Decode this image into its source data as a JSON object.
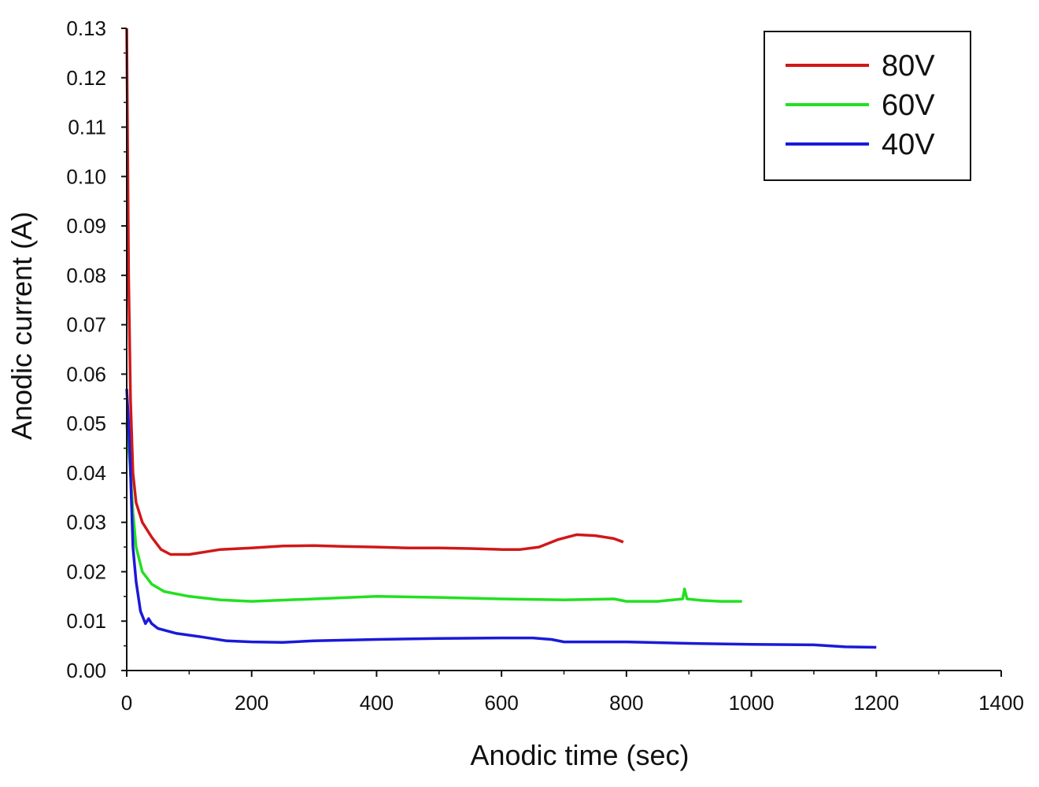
{
  "chart_data": {
    "type": "line",
    "title": "",
    "xlabel": "Anodic time (sec)",
    "ylabel": "Anodic current (A)",
    "xlim": [
      0,
      1400
    ],
    "ylim": [
      0,
      0.13
    ],
    "x_ticks": [
      "0",
      "200",
      "400",
      "600",
      "800",
      "1000",
      "1200",
      "1400"
    ],
    "y_ticks": [
      "0.00",
      "0.01",
      "0.02",
      "0.03",
      "0.04",
      "0.05",
      "0.06",
      "0.07",
      "0.08",
      "0.09",
      "0.10",
      "0.11",
      "0.12",
      "0.13"
    ],
    "grid": false,
    "legend_position": "top-right",
    "series": [
      {
        "name": "80V",
        "color": "#d01818",
        "points": [
          [
            0,
            0.13
          ],
          [
            3,
            0.08
          ],
          [
            6,
            0.055
          ],
          [
            10,
            0.04
          ],
          [
            15,
            0.034
          ],
          [
            25,
            0.03
          ],
          [
            40,
            0.027
          ],
          [
            55,
            0.0245
          ],
          [
            70,
            0.0235
          ],
          [
            100,
            0.0235
          ],
          [
            150,
            0.0245
          ],
          [
            200,
            0.0248
          ],
          [
            250,
            0.0252
          ],
          [
            300,
            0.0253
          ],
          [
            350,
            0.0251
          ],
          [
            400,
            0.025
          ],
          [
            450,
            0.0248
          ],
          [
            500,
            0.0248
          ],
          [
            550,
            0.0247
          ],
          [
            600,
            0.0245
          ],
          [
            630,
            0.0245
          ],
          [
            660,
            0.025
          ],
          [
            690,
            0.0265
          ],
          [
            720,
            0.0275
          ],
          [
            750,
            0.0273
          ],
          [
            780,
            0.0267
          ],
          [
            795,
            0.026
          ]
        ]
      },
      {
        "name": "60V",
        "color": "#22e022",
        "points": [
          [
            0,
            0.05
          ],
          [
            5,
            0.042
          ],
          [
            10,
            0.032
          ],
          [
            15,
            0.025
          ],
          [
            25,
            0.02
          ],
          [
            40,
            0.0175
          ],
          [
            60,
            0.016
          ],
          [
            100,
            0.015
          ],
          [
            150,
            0.0143
          ],
          [
            200,
            0.014
          ],
          [
            300,
            0.0145
          ],
          [
            400,
            0.015
          ],
          [
            500,
            0.0148
          ],
          [
            600,
            0.0145
          ],
          [
            700,
            0.0143
          ],
          [
            780,
            0.0145
          ],
          [
            800,
            0.014
          ],
          [
            850,
            0.014
          ],
          [
            890,
            0.0145
          ],
          [
            893,
            0.0165
          ],
          [
            897,
            0.0145
          ],
          [
            920,
            0.0142
          ],
          [
            950,
            0.014
          ],
          [
            985,
            0.014
          ]
        ]
      },
      {
        "name": "40V",
        "color": "#1a1ad8",
        "points": [
          [
            0,
            0.057
          ],
          [
            3,
            0.05
          ],
          [
            6,
            0.04
          ],
          [
            10,
            0.025
          ],
          [
            15,
            0.018
          ],
          [
            22,
            0.012
          ],
          [
            30,
            0.0095
          ],
          [
            35,
            0.0105
          ],
          [
            40,
            0.0095
          ],
          [
            50,
            0.0085
          ],
          [
            80,
            0.0075
          ],
          [
            120,
            0.0068
          ],
          [
            160,
            0.006
          ],
          [
            200,
            0.0058
          ],
          [
            250,
            0.0057
          ],
          [
            300,
            0.006
          ],
          [
            400,
            0.0063
          ],
          [
            500,
            0.0065
          ],
          [
            600,
            0.0066
          ],
          [
            650,
            0.0066
          ],
          [
            680,
            0.0063
          ],
          [
            700,
            0.0058
          ],
          [
            800,
            0.0058
          ],
          [
            900,
            0.0055
          ],
          [
            1000,
            0.0053
          ],
          [
            1100,
            0.0052
          ],
          [
            1150,
            0.0048
          ],
          [
            1200,
            0.0047
          ]
        ]
      }
    ]
  }
}
